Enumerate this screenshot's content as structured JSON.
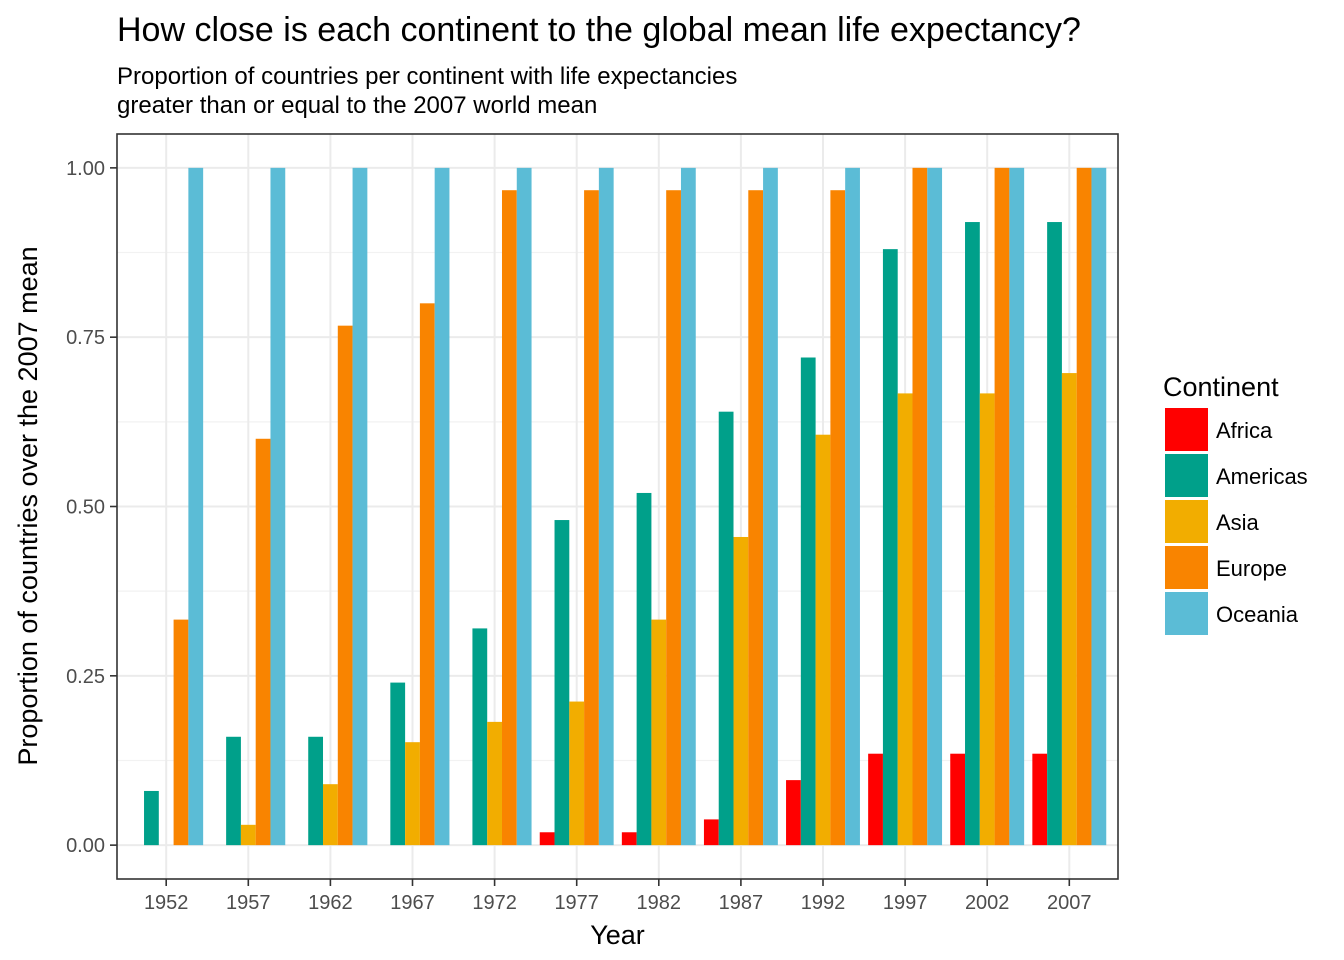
{
  "chart_data": {
    "type": "bar",
    "title": "How close is each continent to the global mean life expectancy?",
    "subtitle": [
      "Proportion of countries per continent with life expectancies",
      "greater than or equal to the 2007 world mean"
    ],
    "xlabel": "Year",
    "ylabel": "Proportion of countries over the 2007 mean",
    "ylim": [
      -0.05,
      1.05
    ],
    "y_ticks": [
      0,
      0.25,
      0.5,
      0.75,
      1.0
    ],
    "y_tick_labels": [
      "0.00",
      "0.25",
      "0.50",
      "0.75",
      "1.00"
    ],
    "grid": true,
    "legend_position": "right",
    "legend_title": "Continent",
    "categories": [
      "1952",
      "1957",
      "1962",
      "1967",
      "1972",
      "1977",
      "1982",
      "1987",
      "1992",
      "1997",
      "2002",
      "2007"
    ],
    "series": [
      {
        "name": "Africa",
        "color": "#FF0000",
        "values": [
          0,
          0,
          0,
          0,
          0,
          0.019,
          0.019,
          0.038,
          0.096,
          0.135,
          0.135,
          0.135
        ]
      },
      {
        "name": "Americas",
        "color": "#00A08A",
        "values": [
          0.08,
          0.16,
          0.16,
          0.24,
          0.32,
          0.48,
          0.52,
          0.64,
          0.72,
          0.88,
          0.92,
          0.92
        ]
      },
      {
        "name": "Asia",
        "color": "#F2AD00",
        "values": [
          0,
          0.03,
          0.09,
          0.152,
          0.182,
          0.212,
          0.333,
          0.455,
          0.606,
          0.667,
          0.667,
          0.697
        ]
      },
      {
        "name": "Europe",
        "color": "#F98400",
        "values": [
          0.333,
          0.6,
          0.767,
          0.8,
          0.967,
          0.967,
          0.967,
          0.967,
          0.967,
          1.0,
          1.0,
          1.0
        ]
      },
      {
        "name": "Oceania",
        "color": "#5BBCD6",
        "values": [
          1.0,
          1.0,
          1.0,
          1.0,
          1.0,
          1.0,
          1.0,
          1.0,
          1.0,
          1.0,
          1.0,
          1.0
        ]
      }
    ]
  }
}
